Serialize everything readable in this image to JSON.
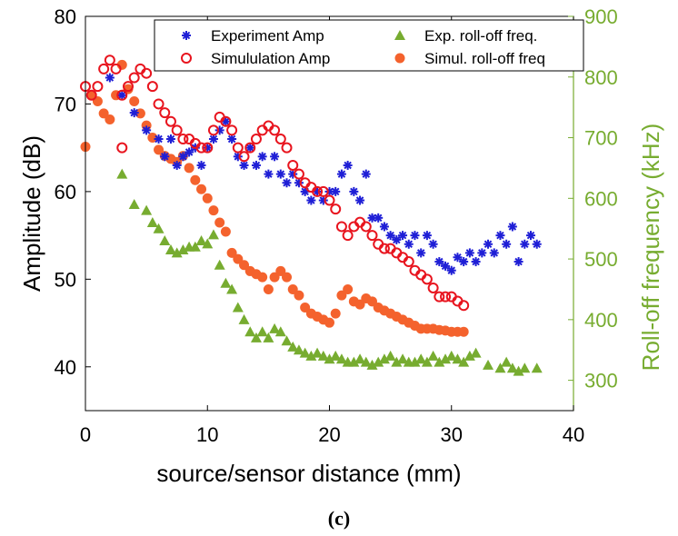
{
  "caption": "(c)",
  "colors": {
    "exp_amp": "#1f1fd6",
    "sim_amp": "#e8141e",
    "exp_rolloff": "#77ac30",
    "sim_rolloff": "#f4622d",
    "right_axis": "#77ac30"
  },
  "chart_data": {
    "type": "scatter",
    "title": "",
    "xlabel": "source/sensor distance (mm)",
    "ylabel": "Amplitude (dB)",
    "ylabel_right": "Roll-off frequency (kHz)",
    "xlim": [
      0,
      40
    ],
    "ylim": [
      35,
      80
    ],
    "ylim_right": [
      250,
      900
    ],
    "x_ticks": [
      "0",
      "10",
      "20",
      "30",
      "40"
    ],
    "y_ticks": [
      "40",
      "50",
      "60",
      "70",
      "80"
    ],
    "y_ticks_right": [
      "300",
      "400",
      "500",
      "600",
      "700",
      "800",
      "900"
    ],
    "grid": false,
    "legend_position": "top",
    "series": [
      {
        "name": "Experiment Amp",
        "axis": "left",
        "marker": "asterisk",
        "points": [
          [
            2,
            73
          ],
          [
            3,
            71
          ],
          [
            4,
            69
          ],
          [
            5,
            67
          ],
          [
            6,
            66
          ],
          [
            6.5,
            64
          ],
          [
            7,
            66
          ],
          [
            7.5,
            63
          ],
          [
            8,
            64
          ],
          [
            8.5,
            64.5
          ],
          [
            9,
            65
          ],
          [
            9.5,
            63
          ],
          [
            10,
            65
          ],
          [
            10.5,
            66
          ],
          [
            11,
            67
          ],
          [
            11.5,
            68
          ],
          [
            12,
            66
          ],
          [
            12.5,
            64
          ],
          [
            13,
            63
          ],
          [
            13.5,
            65
          ],
          [
            14,
            63
          ],
          [
            14.5,
            64
          ],
          [
            15,
            62
          ],
          [
            15.5,
            64
          ],
          [
            16,
            62
          ],
          [
            16.5,
            61
          ],
          [
            17,
            62
          ],
          [
            17.5,
            61
          ],
          [
            18,
            60
          ],
          [
            18.5,
            59
          ],
          [
            19,
            60
          ],
          [
            19.5,
            59
          ],
          [
            20,
            60
          ],
          [
            20.5,
            60
          ],
          [
            21,
            62
          ],
          [
            21.5,
            63
          ],
          [
            22,
            60
          ],
          [
            22.5,
            59
          ],
          [
            23,
            62
          ],
          [
            23.5,
            57
          ],
          [
            24,
            57
          ],
          [
            24.5,
            56
          ],
          [
            25,
            55
          ],
          [
            25.5,
            54.5
          ],
          [
            26,
            55
          ],
          [
            26.5,
            54
          ],
          [
            27,
            55
          ],
          [
            27.5,
            53
          ],
          [
            28,
            55
          ],
          [
            28.5,
            54
          ],
          [
            29,
            52
          ],
          [
            29.5,
            51.5
          ],
          [
            30,
            51
          ],
          [
            30.5,
            52.5
          ],
          [
            31,
            52
          ],
          [
            31.5,
            53
          ],
          [
            32,
            52
          ],
          [
            32.5,
            53
          ],
          [
            33,
            54
          ],
          [
            33.5,
            53
          ],
          [
            34,
            55
          ],
          [
            34.5,
            54
          ],
          [
            35,
            56
          ],
          [
            35.5,
            52
          ],
          [
            36,
            54
          ],
          [
            36.5,
            55
          ],
          [
            37,
            54
          ]
        ]
      },
      {
        "name": "Simululation Amp",
        "axis": "left",
        "marker": "circle",
        "points": [
          [
            0,
            72
          ],
          [
            0.5,
            71
          ],
          [
            1,
            72
          ],
          [
            1.5,
            74
          ],
          [
            2,
            75
          ],
          [
            2.5,
            74
          ],
          [
            3,
            71
          ],
          [
            3.5,
            72
          ],
          [
            4,
            73
          ],
          [
            4.5,
            74
          ],
          [
            5,
            73.5
          ],
          [
            5.5,
            72
          ],
          [
            6,
            70
          ],
          [
            6.5,
            69
          ],
          [
            7,
            68
          ],
          [
            7.5,
            67
          ],
          [
            8,
            66
          ],
          [
            8.5,
            66
          ],
          [
            9,
            65.5
          ],
          [
            9.5,
            65
          ],
          [
            10,
            65
          ],
          [
            10.5,
            67
          ],
          [
            11,
            68.5
          ],
          [
            11.5,
            68
          ],
          [
            12,
            67
          ],
          [
            12.5,
            65
          ],
          [
            13,
            64
          ],
          [
            13.5,
            65
          ],
          [
            14,
            66
          ],
          [
            14.5,
            67
          ],
          [
            15,
            67.5
          ],
          [
            15.5,
            67
          ],
          [
            16,
            66
          ],
          [
            16.5,
            65
          ],
          [
            17,
            63
          ],
          [
            17.5,
            62
          ],
          [
            18,
            61
          ],
          [
            18.5,
            60.5
          ],
          [
            19,
            60
          ],
          [
            19.5,
            60
          ],
          [
            20,
            59
          ],
          [
            20.5,
            58
          ],
          [
            21,
            56
          ],
          [
            21.5,
            55
          ],
          [
            22,
            56
          ],
          [
            22.5,
            56.5
          ],
          [
            23,
            56
          ],
          [
            23.5,
            55
          ],
          [
            24,
            54
          ],
          [
            24.5,
            53.5
          ],
          [
            25,
            53.5
          ],
          [
            25.5,
            53
          ],
          [
            26,
            52.5
          ],
          [
            26.5,
            52
          ],
          [
            27,
            51
          ],
          [
            27.5,
            50.5
          ],
          [
            28,
            50
          ],
          [
            28.5,
            49
          ],
          [
            29,
            48
          ],
          [
            29.5,
            48
          ],
          [
            30,
            48
          ],
          [
            30.5,
            47.5
          ],
          [
            31,
            47
          ],
          [
            3,
            65
          ]
        ]
      },
      {
        "name": "Exp. roll-off freq.",
        "axis": "right",
        "marker": "triangle",
        "points": [
          [
            3,
            640
          ],
          [
            4,
            590
          ],
          [
            5,
            580
          ],
          [
            5.5,
            560
          ],
          [
            6,
            550
          ],
          [
            6.5,
            530
          ],
          [
            7,
            515
          ],
          [
            7.5,
            510
          ],
          [
            8,
            515
          ],
          [
            8.5,
            520
          ],
          [
            9,
            520
          ],
          [
            9.5,
            530
          ],
          [
            10,
            525
          ],
          [
            10.5,
            540
          ],
          [
            11,
            490
          ],
          [
            11.5,
            460
          ],
          [
            12,
            450
          ],
          [
            12.5,
            420
          ],
          [
            13,
            400
          ],
          [
            13.5,
            380
          ],
          [
            14,
            370
          ],
          [
            14.5,
            380
          ],
          [
            15,
            370
          ],
          [
            15.5,
            385
          ],
          [
            16,
            380
          ],
          [
            16.5,
            365
          ],
          [
            17,
            355
          ],
          [
            17.5,
            350
          ],
          [
            18,
            345
          ],
          [
            18.5,
            340
          ],
          [
            19,
            345
          ],
          [
            19.5,
            340
          ],
          [
            20,
            335
          ],
          [
            20.5,
            340
          ],
          [
            21,
            335
          ],
          [
            21.5,
            330
          ],
          [
            22,
            330
          ],
          [
            22.5,
            335
          ],
          [
            23,
            330
          ],
          [
            23.5,
            325
          ],
          [
            24,
            330
          ],
          [
            24.5,
            335
          ],
          [
            25,
            340
          ],
          [
            25.5,
            330
          ],
          [
            26,
            335
          ],
          [
            26.5,
            330
          ],
          [
            27,
            330
          ],
          [
            27.5,
            335
          ],
          [
            28,
            330
          ],
          [
            28.5,
            340
          ],
          [
            29,
            330
          ],
          [
            29.5,
            335
          ],
          [
            30,
            340
          ],
          [
            30.5,
            335
          ],
          [
            31,
            330
          ],
          [
            31.5,
            340
          ],
          [
            32,
            345
          ],
          [
            33,
            325
          ],
          [
            34,
            320
          ],
          [
            34.5,
            330
          ],
          [
            35,
            320
          ],
          [
            35.5,
            315
          ],
          [
            36,
            320
          ],
          [
            37,
            320
          ]
        ]
      },
      {
        "name": "Simul. roll-off freq",
        "axis": "right",
        "marker": "filled-circle",
        "points": [
          [
            0,
            685
          ],
          [
            0.5,
            770
          ],
          [
            1,
            760
          ],
          [
            1.5,
            740
          ],
          [
            2,
            730
          ],
          [
            2.5,
            770
          ],
          [
            3,
            820
          ],
          [
            3.5,
            780
          ],
          [
            4,
            760
          ],
          [
            4.5,
            740
          ],
          [
            5,
            720
          ],
          [
            5.5,
            700
          ],
          [
            6,
            680
          ],
          [
            6.5,
            670
          ],
          [
            7,
            665
          ],
          [
            7.5,
            660
          ],
          [
            8,
            670
          ],
          [
            8.5,
            650
          ],
          [
            9,
            630
          ],
          [
            9.5,
            615
          ],
          [
            10,
            600
          ],
          [
            10.5,
            580
          ],
          [
            11,
            560
          ],
          [
            11.5,
            545
          ],
          [
            12,
            510
          ],
          [
            12.5,
            500
          ],
          [
            13,
            490
          ],
          [
            13.5,
            480
          ],
          [
            14,
            475
          ],
          [
            14.5,
            470
          ],
          [
            15,
            450
          ],
          [
            15.5,
            470
          ],
          [
            16,
            480
          ],
          [
            16.5,
            470
          ],
          [
            17,
            450
          ],
          [
            17.5,
            440
          ],
          [
            18,
            420
          ],
          [
            18.5,
            410
          ],
          [
            19,
            405
          ],
          [
            19.5,
            400
          ],
          [
            20,
            395
          ],
          [
            20.5,
            410
          ],
          [
            21,
            440
          ],
          [
            21.5,
            450
          ],
          [
            22,
            430
          ],
          [
            22.5,
            425
          ],
          [
            23,
            435
          ],
          [
            23.5,
            430
          ],
          [
            24,
            420
          ],
          [
            24.5,
            415
          ],
          [
            25,
            410
          ],
          [
            25.5,
            405
          ],
          [
            26,
            400
          ],
          [
            26.5,
            395
          ],
          [
            27,
            390
          ],
          [
            27.5,
            385
          ],
          [
            28,
            385
          ],
          [
            28.5,
            385
          ],
          [
            29,
            383
          ],
          [
            29.5,
            382
          ],
          [
            30,
            380
          ],
          [
            30.5,
            380
          ],
          [
            31,
            380
          ]
        ]
      }
    ]
  }
}
